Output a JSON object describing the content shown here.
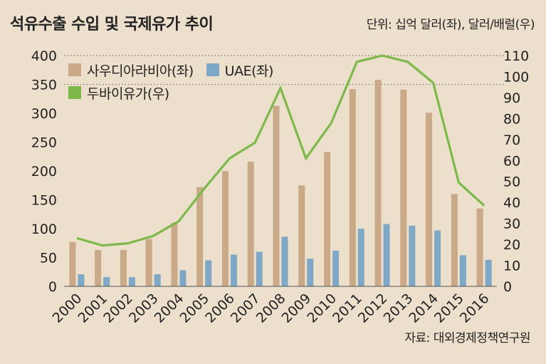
{
  "chart_data": {
    "type": "bar",
    "title": "석유수출 수입 및 국제유가 추이",
    "unit_note": "단위: 십억 달러(좌), 달러/배럴(우)",
    "source": "자료: 대외경제정책연구원",
    "categories": [
      "2000",
      "2001",
      "2002",
      "2003",
      "2004",
      "2005",
      "2006",
      "2007",
      "2008",
      "2009",
      "2010",
      "2011",
      "2012",
      "2013",
      "2014",
      "2015",
      "2016"
    ],
    "series": [
      {
        "name": "사우디아라비아(좌)",
        "type": "bar",
        "axis": "left",
        "color": "#c9a988",
        "values": [
          77,
          63,
          63,
          82,
          110,
          172,
          200,
          216,
          313,
          175,
          233,
          342,
          358,
          341,
          301,
          160,
          135
        ]
      },
      {
        "name": "UAE(좌)",
        "type": "bar",
        "axis": "left",
        "color": "#7fa8c6",
        "values": [
          21,
          16,
          16,
          21,
          28,
          45,
          55,
          60,
          86,
          48,
          62,
          100,
          108,
          105,
          97,
          54,
          46
        ]
      },
      {
        "name": "두바이유가(우)",
        "type": "line",
        "axis": "right",
        "color": "#7db84a",
        "values": [
          23,
          19.5,
          20.5,
          24,
          31,
          46.5,
          61,
          68.5,
          94.5,
          61,
          78,
          107,
          110,
          107,
          97,
          49.5,
          38.5
        ]
      }
    ],
    "y_left": {
      "min": 0,
      "max": 400,
      "ticks": [
        0,
        50,
        100,
        150,
        200,
        250,
        300,
        350,
        400
      ]
    },
    "y_right": {
      "min": 0,
      "max": 110,
      "ticks": [
        0,
        10,
        20,
        30,
        40,
        50,
        60,
        70,
        80,
        90,
        100,
        110
      ]
    },
    "gridlines": [
      350,
      400
    ],
    "legend_position": "top-left"
  }
}
